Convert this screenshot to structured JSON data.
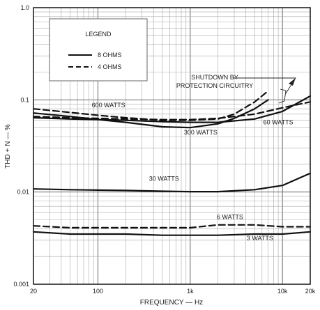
{
  "chart_data": {
    "type": "line",
    "xlabel": "FREQUENCY — Hz",
    "ylabel": "THD + N — %",
    "x_scale": "log",
    "y_scale": "log",
    "xlim": [
      20,
      20000
    ],
    "ylim": [
      0.001,
      1.0
    ],
    "grid": true,
    "x_ticks": [
      {
        "value": 20,
        "label": "20"
      },
      {
        "value": 100,
        "label": "100"
      },
      {
        "value": 1000,
        "label": "1k"
      },
      {
        "value": 10000,
        "label": "10k"
      },
      {
        "value": 20000,
        "label": "20k"
      }
    ],
    "y_ticks": [
      {
        "value": 1.0,
        "label": "1.0"
      },
      {
        "value": 0.1,
        "label": "0.1"
      },
      {
        "value": 0.01,
        "label": "0.01"
      },
      {
        "value": 0.001,
        "label": "0.001"
      }
    ],
    "legend": {
      "title": "LEGEND",
      "placement": "top-left",
      "entries": [
        {
          "label": "8 OHMS",
          "style": "solid"
        },
        {
          "label": "4 OHMS",
          "style": "dashed"
        }
      ]
    },
    "series": [
      {
        "name": "600 WATTS",
        "load": "4 OHMS",
        "style": "dashed",
        "x": [
          20,
          50,
          100,
          200,
          500,
          1000,
          2000,
          3000,
          5000,
          7000
        ],
        "y": [
          0.08,
          0.073,
          0.068,
          0.064,
          0.06,
          0.06,
          0.062,
          0.07,
          0.095,
          0.125
        ]
      },
      {
        "name": "300 WATTS",
        "load": "8 OHMS",
        "style": "solid",
        "x": [
          20,
          50,
          100,
          200,
          500,
          1000,
          2000,
          3000,
          5000,
          7000
        ],
        "y": [
          0.072,
          0.066,
          0.061,
          0.057,
          0.051,
          0.05,
          0.055,
          0.063,
          0.08,
          0.1
        ]
      },
      {
        "name": "60 WATTS (4 OHMS)",
        "load": "4 OHMS",
        "style": "dashed",
        "x": [
          20,
          50,
          100,
          200,
          500,
          1000,
          2000,
          5000,
          10000,
          20000
        ],
        "y": [
          0.066,
          0.064,
          0.063,
          0.062,
          0.061,
          0.061,
          0.063,
          0.07,
          0.082,
          0.095
        ]
      },
      {
        "name": "60 WATTS",
        "load": "8 OHMS",
        "style": "solid",
        "x": [
          20,
          50,
          100,
          200,
          500,
          1000,
          2000,
          5000,
          10000,
          20000
        ],
        "y": [
          0.064,
          0.062,
          0.061,
          0.06,
          0.058,
          0.057,
          0.057,
          0.062,
          0.075,
          0.11
        ]
      },
      {
        "name": "30 WATTS",
        "load": "8 OHMS",
        "style": "solid",
        "x": [
          20,
          50,
          100,
          200,
          500,
          1000,
          2000,
          5000,
          10000,
          20000
        ],
        "y": [
          0.0108,
          0.0106,
          0.0105,
          0.0104,
          0.0102,
          0.0101,
          0.0101,
          0.0106,
          0.0118,
          0.016
        ]
      },
      {
        "name": "6 WATTS",
        "load": "4 OHMS",
        "style": "dashed",
        "x": [
          20,
          50,
          100,
          200,
          500,
          1000,
          2000,
          5000,
          10000,
          20000
        ],
        "y": [
          0.0043,
          0.0041,
          0.0041,
          0.0041,
          0.0041,
          0.0041,
          0.0044,
          0.0044,
          0.0042,
          0.0042
        ]
      },
      {
        "name": "3 WATTS",
        "load": "8 OHMS",
        "style": "solid",
        "x": [
          20,
          50,
          100,
          200,
          500,
          1000,
          2000,
          5000,
          10000,
          20000
        ],
        "y": [
          0.0037,
          0.0035,
          0.0035,
          0.0035,
          0.0034,
          0.0034,
          0.0034,
          0.0035,
          0.0035,
          0.0037
        ]
      }
    ],
    "curve_labels": [
      {
        "text": "600 WATTS",
        "x": 130,
        "y": 0.083
      },
      {
        "text": "300 WATTS",
        "x": 1300,
        "y": 0.042
      },
      {
        "text": "60 WATTS",
        "x": 9000,
        "y": 0.054
      },
      {
        "text": "30 WATTS",
        "x": 520,
        "y": 0.0132
      },
      {
        "text": "6 WATTS",
        "x": 2700,
        "y": 0.0051
      },
      {
        "text": "3 WATTS",
        "x": 5700,
        "y": 0.003
      }
    ],
    "annotations": [
      {
        "lines": [
          "SHUTDOWN BY",
          "PROTECTION CIRCUITRY"
        ],
        "x": 2700,
        "y": 0.21
      }
    ]
  }
}
